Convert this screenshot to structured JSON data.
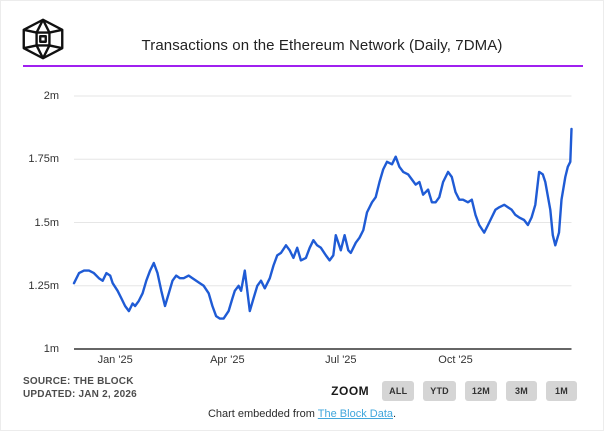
{
  "header": {
    "title": "Transactions on the Ethereum Network (Daily, 7DMA)",
    "logo": "the-block-cube-logo"
  },
  "accent_color": "#A020F0",
  "chart_data": {
    "type": "line",
    "title": "Transactions on the Ethereum Network (Daily, 7DMA)",
    "series_name": "Ethereum daily transactions (7-day moving average)",
    "unit": "millions of transactions per day",
    "line_color": "#1F5BD5",
    "grid": "horizontal-only",
    "legend": "none",
    "y_range": [
      1.0,
      2.0
    ],
    "x_range": [
      "2024-11-29",
      "2026-01-02"
    ],
    "y_ticks": [
      {
        "label": "1m",
        "value": 1.0
      },
      {
        "label": "1.25m",
        "value": 1.25
      },
      {
        "label": "1.5m",
        "value": 1.5
      },
      {
        "label": "1.75m",
        "value": 1.75
      },
      {
        "label": "2m",
        "value": 2.0
      }
    ],
    "x_ticks": [
      {
        "label": "Jan '25",
        "date": "2025-01-01"
      },
      {
        "label": "Apr '25",
        "date": "2025-04-01"
      },
      {
        "label": "Jul '25",
        "date": "2025-07-01"
      },
      {
        "label": "Oct '25",
        "date": "2025-10-01"
      }
    ],
    "points": [
      [
        "2024-11-29",
        1.26
      ],
      [
        "2024-12-03",
        1.3
      ],
      [
        "2024-12-07",
        1.31
      ],
      [
        "2024-12-11",
        1.31
      ],
      [
        "2024-12-15",
        1.3
      ],
      [
        "2024-12-19",
        1.28
      ],
      [
        "2024-12-22",
        1.27
      ],
      [
        "2024-12-25",
        1.3
      ],
      [
        "2024-12-28",
        1.29
      ],
      [
        "2024-12-30",
        1.26
      ],
      [
        "2025-01-03",
        1.23
      ],
      [
        "2025-01-06",
        1.2
      ],
      [
        "2025-01-09",
        1.17
      ],
      [
        "2025-01-12",
        1.15
      ],
      [
        "2025-01-15",
        1.18
      ],
      [
        "2025-01-17",
        1.17
      ],
      [
        "2025-01-20",
        1.19
      ],
      [
        "2025-01-23",
        1.22
      ],
      [
        "2025-01-26",
        1.27
      ],
      [
        "2025-01-29",
        1.31
      ],
      [
        "2025-02-01",
        1.34
      ],
      [
        "2025-02-04",
        1.3
      ],
      [
        "2025-02-07",
        1.23
      ],
      [
        "2025-02-10",
        1.17
      ],
      [
        "2025-02-13",
        1.22
      ],
      [
        "2025-02-16",
        1.27
      ],
      [
        "2025-02-19",
        1.29
      ],
      [
        "2025-02-22",
        1.28
      ],
      [
        "2025-02-25",
        1.28
      ],
      [
        "2025-03-01",
        1.29
      ],
      [
        "2025-03-04",
        1.28
      ],
      [
        "2025-03-07",
        1.27
      ],
      [
        "2025-03-10",
        1.26
      ],
      [
        "2025-03-13",
        1.25
      ],
      [
        "2025-03-17",
        1.22
      ],
      [
        "2025-03-20",
        1.17
      ],
      [
        "2025-03-23",
        1.13
      ],
      [
        "2025-03-26",
        1.12
      ],
      [
        "2025-03-29",
        1.12
      ],
      [
        "2025-04-02",
        1.15
      ],
      [
        "2025-04-05",
        1.2
      ],
      [
        "2025-04-07",
        1.23
      ],
      [
        "2025-04-10",
        1.25
      ],
      [
        "2025-04-12",
        1.23
      ],
      [
        "2025-04-15",
        1.31
      ],
      [
        "2025-04-19",
        1.15
      ],
      [
        "2025-04-22",
        1.2
      ],
      [
        "2025-04-25",
        1.25
      ],
      [
        "2025-04-28",
        1.27
      ],
      [
        "2025-05-01",
        1.24
      ],
      [
        "2025-05-05",
        1.28
      ],
      [
        "2025-05-08",
        1.33
      ],
      [
        "2025-05-11",
        1.37
      ],
      [
        "2025-05-14",
        1.38
      ],
      [
        "2025-05-18",
        1.41
      ],
      [
        "2025-05-21",
        1.39
      ],
      [
        "2025-05-24",
        1.36
      ],
      [
        "2025-05-27",
        1.4
      ],
      [
        "2025-05-30",
        1.35
      ],
      [
        "2025-06-03",
        1.36
      ],
      [
        "2025-06-06",
        1.4
      ],
      [
        "2025-06-09",
        1.43
      ],
      [
        "2025-06-12",
        1.41
      ],
      [
        "2025-06-15",
        1.4
      ],
      [
        "2025-06-19",
        1.37
      ],
      [
        "2025-06-22",
        1.35
      ],
      [
        "2025-06-25",
        1.37
      ],
      [
        "2025-06-27",
        1.45
      ],
      [
        "2025-07-01",
        1.39
      ],
      [
        "2025-07-04",
        1.45
      ],
      [
        "2025-07-07",
        1.39
      ],
      [
        "2025-07-09",
        1.38
      ],
      [
        "2025-07-13",
        1.42
      ],
      [
        "2025-07-16",
        1.44
      ],
      [
        "2025-07-19",
        1.47
      ],
      [
        "2025-07-22",
        1.54
      ],
      [
        "2025-07-26",
        1.58
      ],
      [
        "2025-07-29",
        1.6
      ],
      [
        "2025-08-01",
        1.66
      ],
      [
        "2025-08-04",
        1.71
      ],
      [
        "2025-08-07",
        1.74
      ],
      [
        "2025-08-11",
        1.73
      ],
      [
        "2025-08-14",
        1.76
      ],
      [
        "2025-08-17",
        1.72
      ],
      [
        "2025-08-20",
        1.7
      ],
      [
        "2025-08-24",
        1.69
      ],
      [
        "2025-08-27",
        1.67
      ],
      [
        "2025-08-30",
        1.65
      ],
      [
        "2025-09-02",
        1.66
      ],
      [
        "2025-09-05",
        1.61
      ],
      [
        "2025-09-09",
        1.63
      ],
      [
        "2025-09-12",
        1.58
      ],
      [
        "2025-09-15",
        1.58
      ],
      [
        "2025-09-18",
        1.6
      ],
      [
        "2025-09-21",
        1.66
      ],
      [
        "2025-09-25",
        1.7
      ],
      [
        "2025-09-28",
        1.68
      ],
      [
        "2025-10-01",
        1.62
      ],
      [
        "2025-10-04",
        1.59
      ],
      [
        "2025-10-07",
        1.59
      ],
      [
        "2025-10-11",
        1.58
      ],
      [
        "2025-10-14",
        1.59
      ],
      [
        "2025-10-17",
        1.53
      ],
      [
        "2025-10-20",
        1.49
      ],
      [
        "2025-10-24",
        1.46
      ],
      [
        "2025-10-27",
        1.49
      ],
      [
        "2025-10-30",
        1.52
      ],
      [
        "2025-11-02",
        1.55
      ],
      [
        "2025-11-05",
        1.56
      ],
      [
        "2025-11-09",
        1.57
      ],
      [
        "2025-11-12",
        1.56
      ],
      [
        "2025-11-15",
        1.55
      ],
      [
        "2025-11-18",
        1.53
      ],
      [
        "2025-11-21",
        1.52
      ],
      [
        "2025-11-25",
        1.51
      ],
      [
        "2025-11-28",
        1.49
      ],
      [
        "2025-12-01",
        1.52
      ],
      [
        "2025-12-04",
        1.57
      ],
      [
        "2025-12-07",
        1.7
      ],
      [
        "2025-12-10",
        1.69
      ],
      [
        "2025-12-12",
        1.66
      ],
      [
        "2025-12-16",
        1.55
      ],
      [
        "2025-12-18",
        1.45
      ],
      [
        "2025-12-20",
        1.41
      ],
      [
        "2025-12-23",
        1.46
      ],
      [
        "2025-12-25",
        1.59
      ],
      [
        "2025-12-28",
        1.68
      ],
      [
        "2025-12-30",
        1.72
      ],
      [
        "2026-01-01",
        1.74
      ],
      [
        "2026-01-02",
        1.87
      ]
    ]
  },
  "footer": {
    "source_line1": "SOURCE: THE BLOCK",
    "source_line2": "UPDATED: JAN 2, 2026",
    "zoom": {
      "label": "ZOOM",
      "buttons": [
        "ALL",
        "YTD",
        "12M",
        "3M",
        "1M"
      ]
    },
    "embed": {
      "prefix": "Chart embedded from ",
      "link_text": "The Block Data",
      "suffix": ".",
      "link_color": "#41A7DC"
    }
  }
}
